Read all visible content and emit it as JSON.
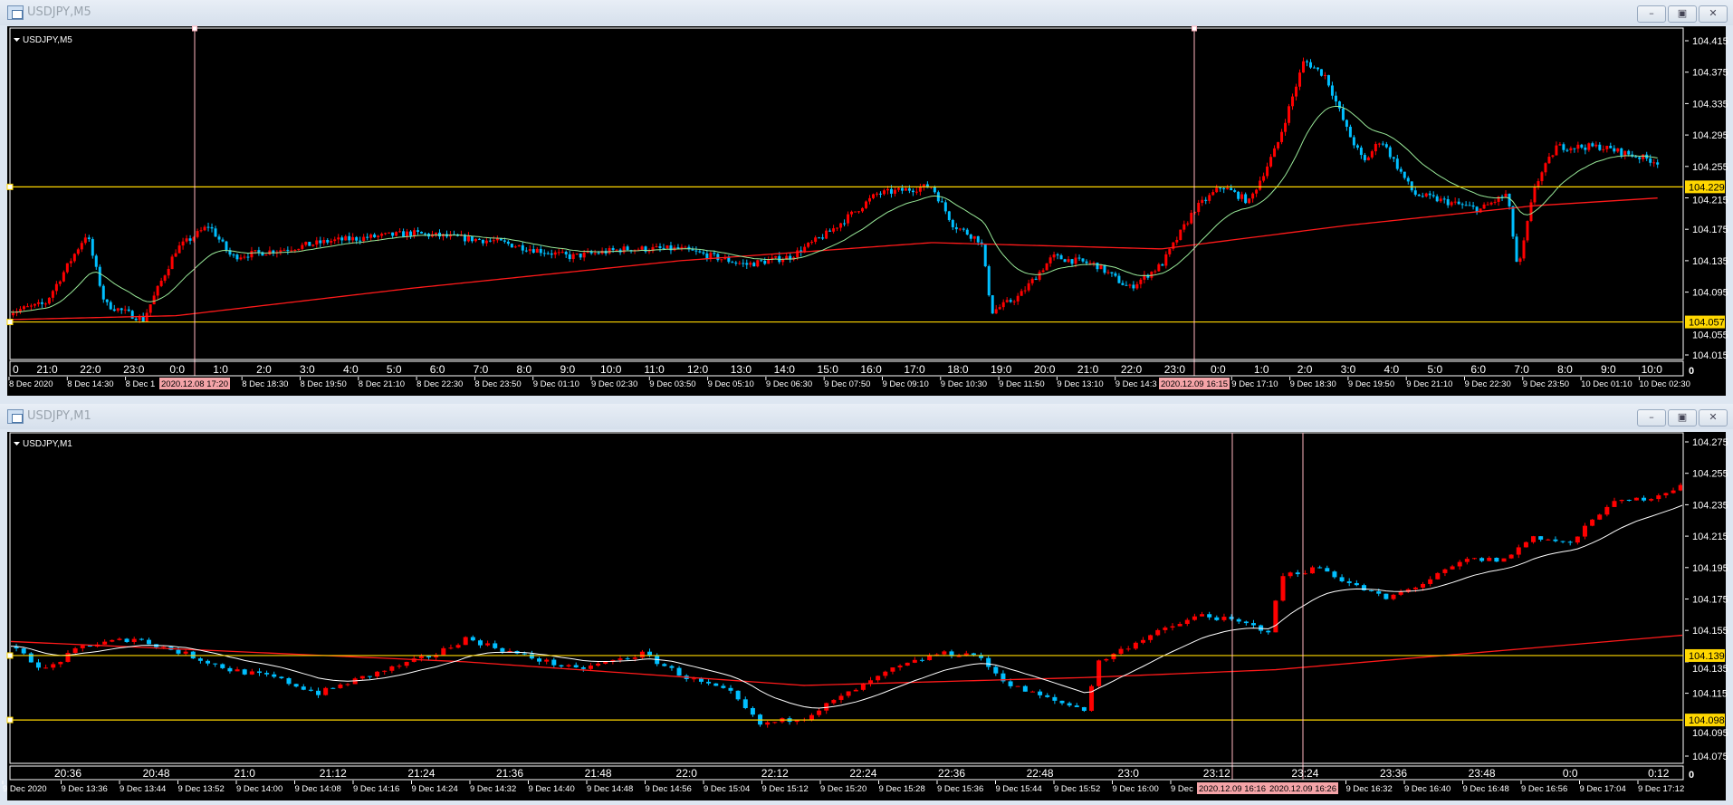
{
  "windows": [
    {
      "title": "USDJPY,M5",
      "chart_label": "USDJPY,M5",
      "buttons": {
        "minimize": "minimize",
        "restore": "restore",
        "close": "close"
      },
      "price_ticks": [
        "104.415",
        "104.375",
        "104.335",
        "104.295",
        "104.255",
        "104.215",
        "104.175",
        "104.135",
        "104.095",
        "104.055",
        "104.015"
      ],
      "hlines": [
        "104.229",
        "104.057"
      ],
      "hour_labels": [
        "0",
        "21:0",
        "22:0",
        "23:0",
        "0:0",
        "1:0",
        "2:0",
        "3:0",
        "4:0",
        "5:0",
        "6:0",
        "7:0",
        "8:0",
        "9:0",
        "10:0",
        "11:0",
        "12:0",
        "13:0",
        "14:0",
        "15:0",
        "16:0",
        "17:0",
        "18:0",
        "19:0",
        "20:0",
        "21:0",
        "22:0",
        "23:0",
        "0:0",
        "1:0",
        "2:0",
        "3:0",
        "4:0",
        "5:0",
        "6:0",
        "7:0",
        "8:0",
        "9:0",
        "10:0"
      ],
      "date_labels": [
        "8 Dec 2020",
        "8 Dec 14:30",
        "8 Dec 1",
        "8 Dec 18:30",
        "8 Dec 19:50",
        "8 Dec 21:10",
        "8 Dec 22:30",
        "8 Dec 23:50",
        "9 Dec 01:10",
        "9 Dec 02:30",
        "9 Dec 03:50",
        "9 Dec 05:10",
        "9 Dec 06:30",
        "9 Dec 07:50",
        "9 Dec 09:10",
        "9 Dec 10:30",
        "9 Dec 11:50",
        "9 Dec 13:10",
        "9 Dec 14:3",
        "9 Dec 17:10",
        "9 Dec 18:30",
        "9 Dec 19:50",
        "9 Dec 21:10",
        "9 Dec 22:30",
        "9 Dec 23:50",
        "10 Dec 01:10",
        "10 Dec 02:30"
      ],
      "vline_labels": [
        "2020.12.08 17:20",
        "2020.12.09 16:15"
      ],
      "corner_label": "0",
      "timeframe_minutes": 5,
      "price_path": [
        [
          "12-08 20:08",
          104.07
        ],
        [
          "12-08 20:57",
          104.08
        ],
        [
          "12-08 21:55",
          104.17
        ],
        [
          "12-08 22:20",
          104.08
        ],
        [
          "12-08 23:13",
          104.06
        ],
        [
          "12-08 23:59",
          104.15
        ],
        [
          "12-09 00:44",
          104.18
        ],
        [
          "12-09 01:15",
          104.14
        ],
        [
          "12-09 02:30",
          104.15
        ],
        [
          "12-09 03:31",
          104.16
        ],
        [
          "12-09 05:25",
          104.17
        ],
        [
          "12-09 07:18",
          104.16
        ],
        [
          "12-09 09:04",
          104.14
        ],
        [
          "12-09 10:20",
          104.15
        ],
        [
          "12-09 11:36",
          104.15
        ],
        [
          "12-09 13:07",
          104.13
        ],
        [
          "12-09 14:08",
          104.14
        ],
        [
          "12-09 15:00",
          104.17
        ],
        [
          "12-09 16:08",
          104.22
        ],
        [
          "12-09 17:24",
          104.23
        ],
        [
          "12-09 17:54",
          104.18
        ],
        [
          "12-09 18:32",
          104.16
        ],
        [
          "12-09 18:47",
          104.07
        ],
        [
          "12-09 19:25",
          104.09
        ],
        [
          "12-09 20:11",
          104.14
        ],
        [
          "12-09 21:11",
          104.13
        ],
        [
          "12-09 21:57",
          104.1
        ],
        [
          "12-09 22:42",
          104.13
        ],
        [
          "12-09 23:27",
          104.2
        ],
        [
          "12-10 00:05",
          104.23
        ],
        [
          "12-10 00:43",
          104.21
        ],
        [
          "12-10 01:21",
          104.28
        ],
        [
          "12-10 01:59",
          104.39
        ],
        [
          "12-10 02:29",
          104.37
        ],
        [
          "12-10 02:59",
          104.3
        ],
        [
          "12-10 03:22",
          104.26
        ],
        [
          "12-10 03:45",
          104.29
        ],
        [
          "12-10 04:31",
          104.22
        ],
        [
          "12-10 05:16",
          104.21
        ],
        [
          "12-10 06:02",
          104.2
        ],
        [
          "12-10 06:40",
          104.22
        ],
        [
          "12-10 06:55",
          104.12
        ],
        [
          "12-10 07:18",
          104.23
        ],
        [
          "12-10 07:48",
          104.28
        ],
        [
          "12-10 08:49",
          104.28
        ],
        [
          "12-10 10:12",
          104.26
        ]
      ],
      "slow_ma_path": [
        [
          "12-08 20:08",
          104.06
        ],
        [
          "12-08 23:59",
          104.065
        ],
        [
          "12-09 05:25",
          104.1
        ],
        [
          "12-09 11:36",
          104.135
        ],
        [
          "12-09 17:24",
          104.158
        ],
        [
          "12-09 22:42",
          104.15
        ],
        [
          "12-10 02:59",
          104.18
        ],
        [
          "12-10 07:18",
          104.205
        ],
        [
          "12-10 10:12",
          104.215
        ]
      ],
      "colors": {
        "up": "#ff0000",
        "down": "#00bfff",
        "fast_ma": "#98e898",
        "slow_ma": "#ff1a1a",
        "hline": "#ffd700",
        "vline": "#ffb6c1"
      }
    },
    {
      "title": "USDJPY,M1",
      "chart_label": "USDJPY,M1",
      "buttons": {
        "minimize": "minimize",
        "restore": "restore",
        "close": "close"
      },
      "price_ticks": [
        "104.275",
        "104.255",
        "104.235",
        "104.215",
        "104.195",
        "104.175",
        "104.155",
        "104.135",
        "104.115",
        "104.095",
        "104.075"
      ],
      "hlines": [
        "104.139",
        "104.098"
      ],
      "hour_labels": [
        "20:36",
        "20:48",
        "21:0",
        "21:12",
        "21:24",
        "21:36",
        "21:48",
        "22:0",
        "22:12",
        "22:24",
        "22:36",
        "22:48",
        "23:0",
        "23:12",
        "23:24",
        "23:36",
        "23:48",
        "0:0",
        "0:12"
      ],
      "date_labels": [
        "9 Dec 2020",
        "9 Dec 13:36",
        "9 Dec 13:44",
        "9 Dec 13:52",
        "9 Dec 14:00",
        "9 Dec 14:08",
        "9 Dec 14:16",
        "9 Dec 14:24",
        "9 Dec 14:32",
        "9 Dec 14:40",
        "9 Dec 14:48",
        "9 Dec 14:56",
        "9 Dec 15:04",
        "9 Dec 15:12",
        "9 Dec 15:20",
        "9 Dec 15:28",
        "9 Dec 15:36",
        "9 Dec 15:44",
        "9 Dec 15:52",
        "9 Dec 16:00",
        "9 Dec",
        "9 Dec 16:32",
        "9 Dec 16:40",
        "9 Dec 16:48",
        "9 Dec 16:56",
        "9 Dec 17:04",
        "9 Dec 17:12"
      ],
      "vline_labels": [
        "2020.12.09 16:16",
        "2020.12.09 16:26"
      ],
      "corner_label": "0",
      "timeframe_minutes": 1,
      "price_path": [
        [
          "12-09 20:28",
          104.145
        ],
        [
          "12-09 20:33",
          104.13
        ],
        [
          "12-09 20:38",
          104.145
        ],
        [
          "12-09 20:45",
          104.15
        ],
        [
          "12-09 20:52",
          104.14
        ],
        [
          "12-09 20:58",
          104.13
        ],
        [
          "12-09 21:04",
          104.125
        ],
        [
          "12-09 21:10",
          104.115
        ],
        [
          "12-09 21:16",
          104.125
        ],
        [
          "12-09 21:26",
          104.14
        ],
        [
          "12-09 21:30",
          104.15
        ],
        [
          "12-09 21:37",
          104.14
        ],
        [
          "12-09 21:45",
          104.13
        ],
        [
          "12-09 21:54",
          104.14
        ],
        [
          "12-09 22:00",
          104.125
        ],
        [
          "12-09 22:06",
          104.115
        ],
        [
          "12-09 22:10",
          104.095
        ],
        [
          "12-09 22:16",
          104.1
        ],
        [
          "12-09 22:22",
          104.115
        ],
        [
          "12-09 22:28",
          104.13
        ],
        [
          "12-09 22:34",
          104.14
        ],
        [
          "12-09 22:39",
          104.14
        ],
        [
          "12-09 22:44",
          104.12
        ],
        [
          "12-09 22:50",
          104.11
        ],
        [
          "12-09 22:54",
          104.105
        ],
        [
          "12-09 22:56",
          104.135
        ],
        [
          "12-09 23:02",
          104.15
        ],
        [
          "12-09 23:10",
          104.165
        ],
        [
          "12-09 23:15",
          104.16
        ],
        [
          "12-09 23:19",
          104.155
        ],
        [
          "12-09 23:21",
          104.19
        ],
        [
          "12-09 23:26",
          104.195
        ],
        [
          "12-09 23:30",
          104.185
        ],
        [
          "12-09 23:35",
          104.175
        ],
        [
          "12-09 23:40",
          104.185
        ],
        [
          "12-09 23:46",
          104.2
        ],
        [
          "12-09 23:51",
          104.2
        ],
        [
          "12-09 23:55",
          104.215
        ],
        [
          "12-10 00:00",
          104.21
        ],
        [
          "12-10 00:05",
          104.235
        ],
        [
          "12-10 00:11",
          104.24
        ],
        [
          "12-10 00:17",
          104.25
        ],
        [
          "12-10 00:23",
          104.248
        ]
      ],
      "slow_ma_path": [
        [
          "12-09 20:28",
          104.148
        ],
        [
          "12-09 21:30",
          104.135
        ],
        [
          "12-09 22:16",
          104.12
        ],
        [
          "12-09 22:54",
          104.125
        ],
        [
          "12-09 23:20",
          104.13
        ],
        [
          "12-10 00:23",
          104.155
        ]
      ],
      "colors": {
        "up": "#ff0000",
        "down": "#00bfff",
        "fast_ma": "#ffffff",
        "slow_ma": "#ff1a1a",
        "hline": "#ffd700",
        "vline": "#ffb6c1"
      }
    }
  ]
}
